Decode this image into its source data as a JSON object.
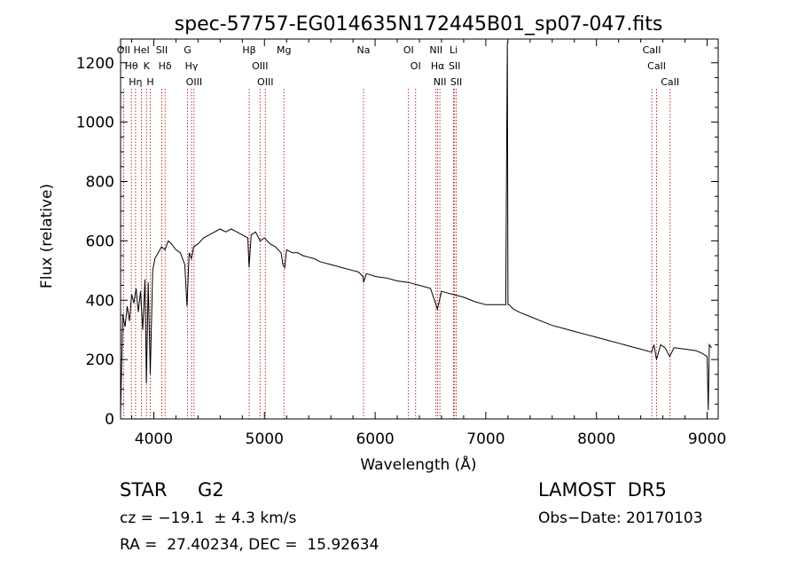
{
  "chart_data": {
    "type": "line",
    "title": "spec-57757-EG014635N172445B01_sp07-047.fits",
    "xlabel": "Wavelength (Å)",
    "ylabel": "Flux (relative)",
    "xlim": [
      3700,
      9100
    ],
    "ylim": [
      0,
      1280
    ],
    "x_ticks": [
      4000,
      5000,
      6000,
      7000,
      8000,
      9000
    ],
    "y_ticks": [
      0,
      200,
      400,
      600,
      800,
      1000,
      1200
    ],
    "grid": false,
    "line_color": "#000000",
    "marker_color": "#aa0000",
    "series": [
      {
        "x": [
          3700,
          3720,
          3740,
          3760,
          3780,
          3800,
          3820,
          3840,
          3860,
          3880,
          3900,
          3920,
          3933,
          3950,
          3968,
          3990,
          4010,
          4040,
          4070,
          4101,
          4130,
          4160,
          4200,
          4240,
          4280,
          4300,
          4320,
          4340,
          4360,
          4400,
          4450,
          4500,
          4550,
          4600,
          4650,
          4700,
          4750,
          4800,
          4850,
          4861,
          4880,
          4920,
          4960,
          5000,
          5050,
          5100,
          5150,
          5167,
          5183,
          5200,
          5250,
          5300,
          5350,
          5400,
          5450,
          5500,
          5600,
          5700,
          5800,
          5850,
          5890,
          5896,
          5920,
          6000,
          6100,
          6200,
          6300,
          6400,
          6500,
          6563,
          6600,
          6700,
          6800,
          6900,
          7000,
          7100,
          7150,
          7180,
          7190,
          7195,
          7200,
          7210,
          7250,
          7300,
          7400,
          7500,
          7600,
          7700,
          7800,
          7900,
          8000,
          8100,
          8200,
          8300,
          8400,
          8498,
          8520,
          8542,
          8580,
          8620,
          8662,
          8700,
          8800,
          8900,
          8960,
          9000,
          9010,
          9020,
          9040
        ],
        "y": [
          20,
          350,
          310,
          380,
          330,
          420,
          390,
          440,
          360,
          430,
          300,
          470,
          120,
          460,
          150,
          500,
          540,
          560,
          580,
          570,
          600,
          590,
          570,
          560,
          520,
          380,
          560,
          540,
          580,
          590,
          610,
          620,
          630,
          640,
          630,
          640,
          630,
          620,
          610,
          510,
          620,
          630,
          600,
          610,
          590,
          580,
          560,
          520,
          510,
          570,
          560,
          560,
          550,
          545,
          540,
          530,
          520,
          510,
          500,
          495,
          480,
          460,
          490,
          480,
          475,
          465,
          460,
          450,
          440,
          370,
          430,
          420,
          410,
          395,
          385,
          385,
          385,
          385,
          1000,
          1270,
          385,
          385,
          370,
          360,
          345,
          330,
          315,
          305,
          295,
          285,
          275,
          265,
          255,
          245,
          235,
          225,
          250,
          200,
          250,
          240,
          210,
          240,
          235,
          230,
          220,
          210,
          30,
          250,
          240
        ]
      }
    ],
    "line_markers": [
      {
        "x": 3727,
        "label": "OII"
      },
      {
        "x": 3797,
        "label": "Hθ"
      },
      {
        "x": 3835,
        "label": "Hη"
      },
      {
        "x": 3889,
        "label": "HeI"
      },
      {
        "x": 3934,
        "label": "K"
      },
      {
        "x": 3969,
        "label": "H"
      },
      {
        "x": 4072,
        "label": "SII"
      },
      {
        "x": 4102,
        "label": "Hδ"
      },
      {
        "x": 4305,
        "label": "G"
      },
      {
        "x": 4341,
        "label": "Hγ"
      },
      {
        "x": 4364,
        "label": "OIII"
      },
      {
        "x": 4862,
        "label": "Hβ"
      },
      {
        "x": 4960,
        "label": "OIII"
      },
      {
        "x": 5008,
        "label": "OIII"
      },
      {
        "x": 5176,
        "label": "Mg"
      },
      {
        "x": 5895,
        "label": "Na"
      },
      {
        "x": 6302,
        "label": "OI"
      },
      {
        "x": 6366,
        "label": "OI"
      },
      {
        "x": 6550,
        "label": "NII"
      },
      {
        "x": 6565,
        "label": "Hα"
      },
      {
        "x": 6585,
        "label": "NII"
      },
      {
        "x": 6709,
        "label": "Li"
      },
      {
        "x": 6718,
        "label": "SII"
      },
      {
        "x": 6733,
        "label": "SII"
      },
      {
        "x": 8500,
        "label": "CaII"
      },
      {
        "x": 8544,
        "label": "CaII"
      },
      {
        "x": 8665,
        "label": "CaII"
      }
    ]
  },
  "footer": {
    "object_type": "STAR",
    "subclass": "G2",
    "survey": "LAMOST  DR5",
    "redshift": "cz = −19.1  ± 4.3 km/s",
    "obs_date": "Obs−Date: 20170103",
    "coords": "RA =  27.40234, DEC =  15.92634"
  }
}
